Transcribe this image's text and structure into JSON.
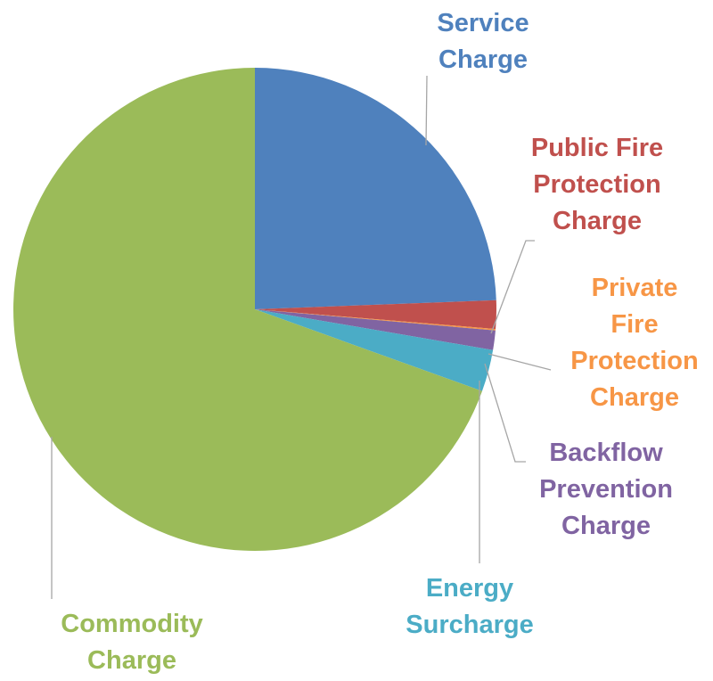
{
  "chart_data": {
    "type": "pie",
    "title": "",
    "start_angle_deg": 0,
    "direction": "clockwise",
    "slices": [
      {
        "name": "Service Charge",
        "label_lines": [
          "Service",
          "Charge"
        ],
        "value": 24.4,
        "color": "#4F81BD"
      },
      {
        "name": "Public Fire Protection Charge",
        "label_lines": [
          "Public Fire",
          "Protection",
          "Charge"
        ],
        "value": 1.9,
        "color": "#C0504D"
      },
      {
        "name": "Private Fire Protection Charge",
        "label_lines": [
          "Private",
          "Fire",
          "Protection",
          "Charge"
        ],
        "value": 0.1,
        "color": "#F79646"
      },
      {
        "name": "Backflow Prevention Charge",
        "label_lines": [
          "Backflow",
          "Prevention",
          "Charge"
        ],
        "value": 1.3,
        "color": "#8064A2"
      },
      {
        "name": "Energy Surcharge",
        "label_lines": [
          "Energy",
          "Surcharge"
        ],
        "value": 2.8,
        "color": "#4BACC6"
      },
      {
        "name": "Commodity Charge",
        "label_lines": [
          "Commodity",
          "Charge"
        ],
        "value": 69.5,
        "color": "#9BBB59"
      }
    ]
  }
}
